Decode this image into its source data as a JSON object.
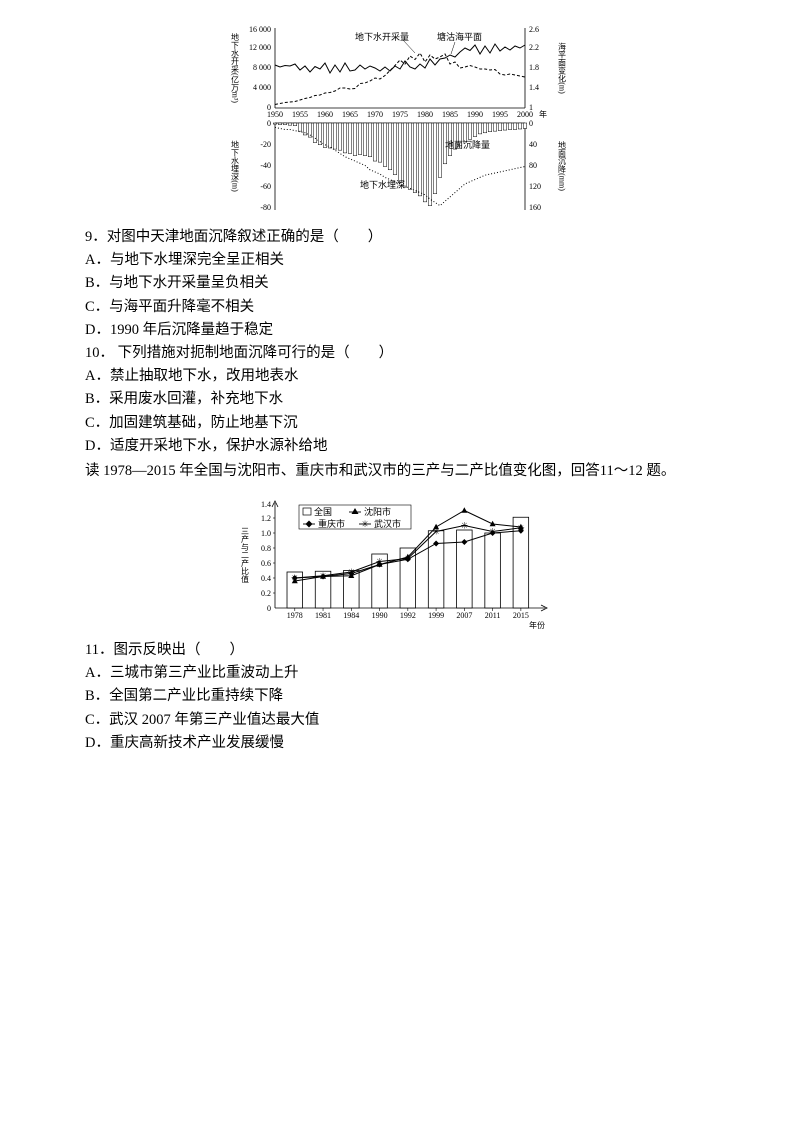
{
  "fig1": {
    "top": {
      "left_axis_label": "地下水开采(亿万m³)",
      "right_axis_label": "海平面变化(m)",
      "left_ticks": [
        0,
        4000,
        8000,
        12000,
        16000
      ],
      "right_ticks": [
        1.0,
        1.4,
        1.8,
        2.2,
        2.6
      ],
      "x_ticks": [
        1950,
        1955,
        1960,
        1965,
        1970,
        1975,
        1980,
        1985,
        1990,
        1995,
        2000
      ],
      "x_unit": "年",
      "series_labels": {
        "extract": "地下水开采量",
        "sea": "塘沽海平面"
      },
      "extract_line": [
        700,
        900,
        1100,
        1200,
        1300,
        1600,
        1900,
        2100,
        2500,
        2600,
        3000,
        3100,
        3400,
        4000,
        4000,
        3800,
        3900,
        4900,
        5000,
        5400,
        6000,
        5800,
        6500,
        7500,
        8500,
        9600,
        8800,
        10400,
        9700,
        11000,
        9200,
        10600,
        9800,
        10200,
        10800,
        8800,
        9200,
        8000,
        8200,
        8500,
        8200,
        7800,
        7800,
        7600,
        7700,
        6800,
        6600,
        6800,
        6600,
        6400,
        6200
      ],
      "sea_line": [
        1.86,
        1.82,
        1.85,
        1.84,
        1.88,
        1.76,
        1.84,
        1.72,
        1.83,
        1.78,
        1.9,
        1.7,
        1.86,
        1.72,
        1.9,
        1.74,
        1.76,
        1.86,
        1.78,
        1.84,
        1.8,
        1.74,
        1.82,
        1.74,
        1.84,
        1.78,
        1.94,
        1.82,
        1.78,
        1.88,
        1.8,
        1.98,
        1.86,
        1.98,
        2.0,
        2.06,
        2.02,
        2.12,
        2.2,
        2.15,
        2.26,
        2.08,
        2.24,
        2.1,
        2.28,
        2.14,
        2.22,
        2.16,
        2.24,
        2.2,
        2.26
      ],
      "colors": {
        "extract": "#000000",
        "sea": "#000000"
      }
    },
    "bottom": {
      "left_axis_label": "地下水埋深(m)",
      "right_axis_label": "地面沉降(mm)",
      "left_ticks": [
        -80,
        -60,
        -40,
        -20,
        0
      ],
      "right_ticks": [
        0,
        40,
        80,
        120,
        160
      ],
      "series_labels": {
        "subs": "地面沉降量",
        "depth": "地下水埋深"
      },
      "subs_bars": [
        2,
        3,
        3,
        4,
        5,
        15,
        22,
        26,
        36,
        40,
        45,
        46,
        48,
        50,
        55,
        56,
        60,
        58,
        60,
        62,
        70,
        72,
        80,
        86,
        95,
        110,
        118,
        122,
        128,
        134,
        145,
        152,
        130,
        100,
        75,
        60,
        48,
        42,
        35,
        30,
        25,
        20,
        18,
        16,
        15,
        14,
        13,
        12,
        12,
        11,
        10
      ],
      "depth_line": [
        -4,
        -5,
        -6,
        -6,
        -7,
        -8,
        -9,
        -11,
        -14,
        -17,
        -20,
        -22,
        -25,
        -28,
        -31,
        -33,
        -35,
        -37,
        -39,
        -43,
        -45,
        -47,
        -50,
        -52,
        -54,
        -56,
        -58,
        -60,
        -62,
        -64,
        -66,
        -70,
        -73,
        -76,
        -72,
        -68,
        -64,
        -60,
        -56,
        -54,
        -52,
        -50,
        -48,
        -47,
        -46,
        -45,
        -44,
        -43,
        -42,
        -41,
        -40
      ],
      "colors": {
        "bars": "#000000",
        "depth": "#000000"
      }
    },
    "style": {
      "bg": "#ffffff",
      "axis_color": "#000000",
      "font_size": 8
    }
  },
  "q9": {
    "stem": "9．对图中天津地面沉降叙述正确的是（　　）",
    "A": "A．与地下水埋深完全呈正相关",
    "B": "B．与地下水开采量呈负相关",
    "C": "C．与海平面升降毫不相关",
    "D": "D．1990 年后沉降量趋于稳定"
  },
  "q10": {
    "stem": "10． 下列措施对扼制地面沉降可行的是（　　）",
    "A": "A．禁止抽取地下水，改用地表水",
    "B": "B．采用废水回灌，补充地下水",
    "C": "C．加固建筑基础，防止地基下沉",
    "D": "D．适度开采地下水，保护水源补给地"
  },
  "intro2": "读 1978—2015 年全国与沈阳市、重庆市和武汉市的三产与二产比值变化图，回答11～12 题。",
  "fig2": {
    "y_axis_label": "三产与二产比值",
    "y_ticks": [
      0,
      0.2,
      0.4,
      0.6,
      0.8,
      1.0,
      1.2,
      1.4
    ],
    "x_ticks": [
      1978,
      1981,
      1984,
      1990,
      1992,
      1999,
      2007,
      2011,
      2015
    ],
    "x_unit": "年份",
    "legend": {
      "national": "全国",
      "shenyang": "沈阳市",
      "chongqing": "重庆市",
      "wuhan": "武汉市"
    },
    "national_bars": [
      0.48,
      0.49,
      0.5,
      0.72,
      0.8,
      1.03,
      1.04,
      1.0,
      1.21
    ],
    "shenyang": [
      0.36,
      0.42,
      0.43,
      0.58,
      0.68,
      1.08,
      1.3,
      1.12,
      1.08
    ],
    "chongqing": [
      0.4,
      0.42,
      0.46,
      0.58,
      0.65,
      0.86,
      0.88,
      1.0,
      1.03
    ],
    "wuhan": [
      0.4,
      0.43,
      0.48,
      0.62,
      0.66,
      1.02,
      1.1,
      1.02,
      1.07
    ],
    "style": {
      "bar_fill": "#ffffff",
      "bar_stroke": "#000000",
      "line_color": "#000000",
      "bg": "#ffffff",
      "bar_width": 0.55
    }
  },
  "q11": {
    "stem": "11．图示反映出（　　）",
    "A": "A．三城市第三产业比重波动上升",
    "B": "B．全国第二产业比重持续下降",
    "C": "C．武汉 2007 年第三产业值达最大值",
    "D": "D．重庆高新技术产业发展缓慢"
  }
}
